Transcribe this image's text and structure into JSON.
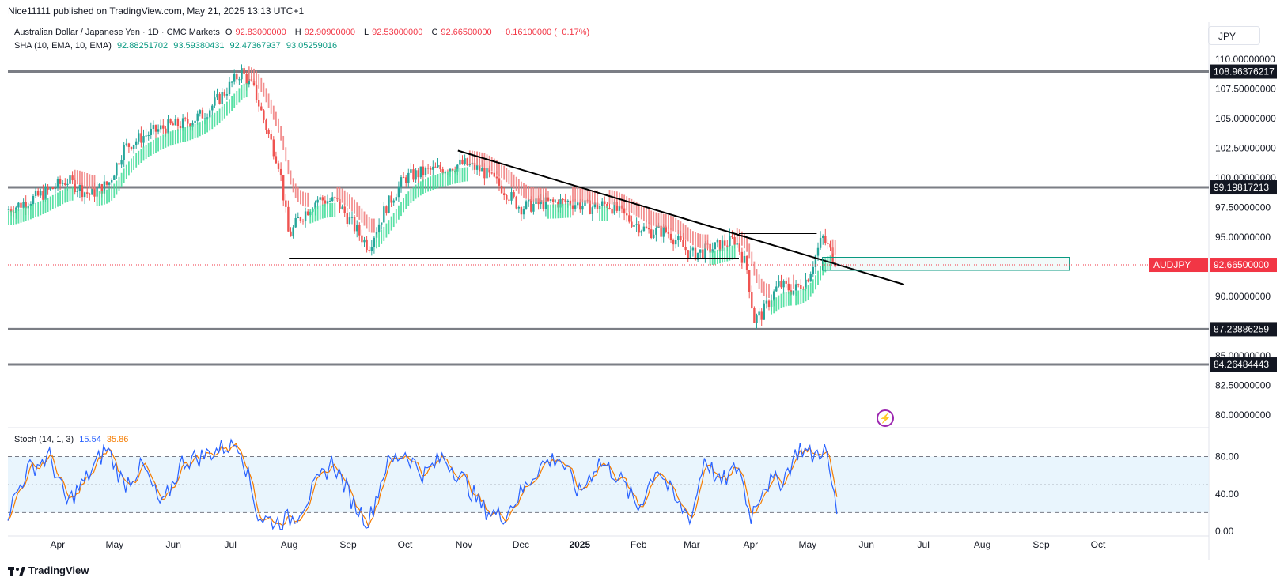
{
  "header": {
    "published": "Nice11111 published on TradingView.com, May 21, 2025 13:13 UTC+1"
  },
  "legend": {
    "symbol": "Australian Dollar / Japanese Yen · 1D · CMC Markets",
    "o_label": "O",
    "o_value": "92.83000000",
    "h_label": "H",
    "h_value": "92.90900000",
    "l_label": "L",
    "l_value": "92.53000000",
    "c_label": "C",
    "c_value": "92.66500000",
    "change": "−0.16100000 (−0.17%)",
    "sha_label": "SHA (10, EMA, 10, EMA)",
    "sha_values": [
      "92.88251702",
      "93.59380431",
      "92.47367937",
      "93.05259016"
    ],
    "stoch_label": "Stoch (14, 1, 3)",
    "stoch_k": "15.54",
    "stoch_d": "35.86"
  },
  "currency_button": "JPY",
  "brand": "TradingView",
  "colors": {
    "bull": "#26a69a",
    "bear": "#ef5350",
    "sha_bull": "#3ddc97",
    "sha_bear": "#f07b7b",
    "level": "#787b86",
    "stoch_k": "#2962ff",
    "stoch_d": "#f57c00",
    "band": "#e3f2fd"
  },
  "chart_data": [
    {
      "type": "candlestick",
      "symbol": "AUDJPY",
      "x_labels": [
        "Apr",
        "May",
        "Jun",
        "Jul",
        "Aug",
        "Sep",
        "Oct",
        "Nov",
        "Dec",
        "2025",
        "Feb",
        "Mar",
        "Apr",
        "May",
        "Jun",
        "Jul",
        "Aug",
        "Sep",
        "Oct"
      ],
      "y_ticks": [
        "110.00000000",
        "107.50000000",
        "105.00000000",
        "102.50000000",
        "100.00000000",
        "97.50000000",
        "95.00000000",
        "90.00000000",
        "85.00000000",
        "82.50000000",
        "80.00000000"
      ],
      "ylim": [
        79,
        113
      ],
      "current_price": {
        "label": "AUDJPY",
        "value": "92.66500000",
        "y": 92.665
      },
      "horizontal_levels": [
        {
          "label": "108.96376217",
          "y": 108.96376217
        },
        {
          "label": "99.19817213",
          "y": 99.19817213
        },
        {
          "label": "87.23886259",
          "y": 87.23886259
        },
        {
          "label": "84.26484443",
          "y": 84.26484443
        }
      ],
      "trendlines": [
        {
          "from": [
            "2024-11-02",
            102.3
          ],
          "to": [
            "2025-06-25",
            91.0
          ]
        },
        {
          "from": [
            "2024-08-05",
            93.2
          ],
          "to": [
            "2025-03-30",
            93.2
          ]
        },
        {
          "from": [
            "2025-03-30",
            95.3
          ],
          "to": [
            "2025-05-10",
            95.3
          ]
        }
      ],
      "rectangle": {
        "x": [
          "2025-05-13",
          "2025-09-20"
        ],
        "y": [
          92.2,
          93.3
        ]
      },
      "price_path": [
        [
          "2024-03-10",
          97.3
        ],
        [
          "2024-03-28",
          98.6
        ],
        [
          "2024-04-10",
          99.8
        ],
        [
          "2024-04-22",
          98.6
        ],
        [
          "2024-05-02",
          99.5
        ],
        [
          "2024-05-10",
          102.5
        ],
        [
          "2024-05-20",
          103.5
        ],
        [
          "2024-06-01",
          104.3
        ],
        [
          "2024-06-12",
          104.6
        ],
        [
          "2024-06-22",
          105.5
        ],
        [
          "2024-07-01",
          107.0
        ],
        [
          "2024-07-11",
          109.0
        ],
        [
          "2024-07-18",
          107.3
        ],
        [
          "2024-07-25",
          103.8
        ],
        [
          "2024-07-31",
          101.0
        ],
        [
          "2024-08-05",
          95.0
        ],
        [
          "2024-08-10",
          96.5
        ],
        [
          "2024-08-20",
          98.2
        ],
        [
          "2024-08-30",
          98.0
        ],
        [
          "2024-09-10",
          95.5
        ],
        [
          "2024-09-16",
          94.2
        ],
        [
          "2024-09-25",
          97.5
        ],
        [
          "2024-10-05",
          100.0
        ],
        [
          "2024-10-15",
          100.5
        ],
        [
          "2024-10-25",
          100.8
        ],
        [
          "2024-11-05",
          101.2
        ],
        [
          "2024-11-15",
          100.6
        ],
        [
          "2024-11-25",
          99.2
        ],
        [
          "2024-12-05",
          97.5
        ],
        [
          "2024-12-15",
          97.8
        ],
        [
          "2024-12-30",
          98.0
        ],
        [
          "2025-01-10",
          97.5
        ],
        [
          "2025-01-20",
          97.8
        ],
        [
          "2025-01-31",
          96.5
        ],
        [
          "2025-02-10",
          95.5
        ],
        [
          "2025-02-20",
          95.5
        ],
        [
          "2025-03-05",
          93.5
        ],
        [
          "2025-03-15",
          94.0
        ],
        [
          "2025-03-28",
          94.8
        ],
        [
          "2025-04-03",
          92.5
        ],
        [
          "2025-04-07",
          88.0
        ],
        [
          "2025-04-11",
          88.5
        ],
        [
          "2025-04-20",
          91.0
        ],
        [
          "2025-04-28",
          90.5
        ],
        [
          "2025-05-05",
          91.5
        ],
        [
          "2025-05-13",
          95.0
        ],
        [
          "2025-05-21",
          92.665
        ]
      ]
    },
    {
      "type": "line",
      "name": "Stoch (14, 1, 3)",
      "y_ticks": [
        "80.00",
        "40.00",
        "0.00"
      ],
      "ylim": [
        -5,
        110
      ],
      "band": [
        20,
        80
      ],
      "series": [
        {
          "name": "15.54",
          "line": "k"
        },
        {
          "name": "35.86",
          "line": "d"
        }
      ],
      "k_path": [
        [
          "2024-03-10",
          20
        ],
        [
          "2024-03-20",
          65
        ],
        [
          "2024-04-01",
          80
        ],
        [
          "2024-04-10",
          30
        ],
        [
          "2024-04-20",
          55
        ],
        [
          "2024-05-01",
          90
        ],
        [
          "2024-05-10",
          50
        ],
        [
          "2024-05-20",
          70
        ],
        [
          "2024-05-30",
          25
        ],
        [
          "2024-06-10",
          75
        ],
        [
          "2024-06-20",
          80
        ],
        [
          "2024-07-01",
          90
        ],
        [
          "2024-07-10",
          95
        ],
        [
          "2024-07-20",
          15
        ],
        [
          "2024-07-30",
          10
        ],
        [
          "2024-08-08",
          15
        ],
        [
          "2024-08-18",
          45
        ],
        [
          "2024-08-28",
          75
        ],
        [
          "2024-09-08",
          30
        ],
        [
          "2024-09-16",
          10
        ],
        [
          "2024-09-25",
          70
        ],
        [
          "2024-10-05",
          85
        ],
        [
          "2024-10-15",
          60
        ],
        [
          "2024-10-25",
          80
        ],
        [
          "2024-11-05",
          55
        ],
        [
          "2024-11-15",
          25
        ],
        [
          "2024-11-25",
          15
        ],
        [
          "2024-12-05",
          40
        ],
        [
          "2024-12-15",
          70
        ],
        [
          "2024-12-25",
          80
        ],
        [
          "2025-01-05",
          40
        ],
        [
          "2025-01-15",
          75
        ],
        [
          "2025-01-25",
          60
        ],
        [
          "2025-02-05",
          25
        ],
        [
          "2025-02-15",
          70
        ],
        [
          "2025-02-25",
          30
        ],
        [
          "2025-03-05",
          15
        ],
        [
          "2025-03-12",
          80
        ],
        [
          "2025-03-20",
          50
        ],
        [
          "2025-03-30",
          70
        ],
        [
          "2025-04-05",
          15
        ],
        [
          "2025-04-12",
          50
        ],
        [
          "2025-04-22",
          55
        ],
        [
          "2025-05-01",
          90
        ],
        [
          "2025-05-08",
          80
        ],
        [
          "2025-05-14",
          90
        ],
        [
          "2025-05-18",
          50
        ],
        [
          "2025-05-21",
          15.54
        ]
      ]
    }
  ]
}
